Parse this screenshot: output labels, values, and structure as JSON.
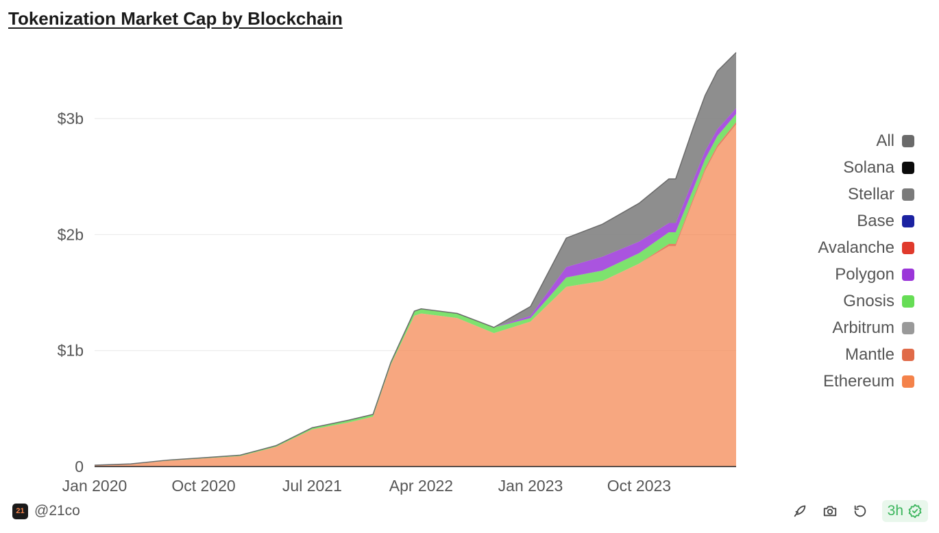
{
  "title": "Tokenization Market Cap by Blockchain",
  "footer": {
    "handle": "@21co",
    "logo_text": "21",
    "refresh_label": "3h"
  },
  "icons": {
    "brand": "21co-logo-icon",
    "tool_1": "feather-pen-icon",
    "tool_2": "camera-icon",
    "tool_3": "refresh-icon",
    "status": "check-badge-icon"
  },
  "legend": [
    {
      "label": "All",
      "color": "#6a6a6a"
    },
    {
      "label": "Solana",
      "color": "#0a0a0a"
    },
    {
      "label": "Stellar",
      "color": "#7a7a7a"
    },
    {
      "label": "Base",
      "color": "#1b22a1"
    },
    {
      "label": "Avalanche",
      "color": "#e03a2c"
    },
    {
      "label": "Polygon",
      "color": "#9b36d9"
    },
    {
      "label": "Gnosis",
      "color": "#66dd55"
    },
    {
      "label": "Arbitrum",
      "color": "#999999"
    },
    {
      "label": "Mantle",
      "color": "#e06a48"
    },
    {
      "label": "Ethereum",
      "color": "#f4824a"
    }
  ],
  "chart_data": {
    "type": "area",
    "stacked": true,
    "title": "Tokenization Market Cap by Blockchain",
    "xlabel": "",
    "ylabel": "",
    "x_ticks": [
      "Jan 2020",
      "Oct 2020",
      "Jul 2021",
      "Apr 2022",
      "Jan 2023",
      "Oct 2023"
    ],
    "y_ticks": [
      "0",
      "$1b",
      "$2b",
      "$3b"
    ],
    "ylim": [
      0,
      3.55
    ],
    "y_unit": "billions USD",
    "grid": "horizontal",
    "legend_position": "right",
    "x": [
      "2020-01-01",
      "2020-04-01",
      "2020-07-01",
      "2020-10-01",
      "2021-01-01",
      "2021-04-01",
      "2021-07-01",
      "2021-10-01",
      "2021-12-01",
      "2022-01-15",
      "2022-03-15",
      "2022-04-01",
      "2022-07-01",
      "2022-10-01",
      "2023-01-01",
      "2023-04-01",
      "2023-07-01",
      "2023-10-01",
      "2023-12-15",
      "2024-01-01",
      "2024-02-15",
      "2024-03-15",
      "2024-04-15",
      "2024-06-01"
    ],
    "series": [
      {
        "name": "Ethereum",
        "color": "#f4824a",
        "values": [
          0.01,
          0.02,
          0.05,
          0.07,
          0.09,
          0.17,
          0.32,
          0.38,
          0.43,
          0.88,
          1.3,
          1.32,
          1.28,
          1.15,
          1.25,
          1.55,
          1.6,
          1.75,
          1.9,
          1.9,
          2.3,
          2.55,
          2.75,
          2.95
        ]
      },
      {
        "name": "Mantle",
        "color": "#e06a48",
        "values": [
          0,
          0,
          0,
          0,
          0,
          0,
          0,
          0,
          0,
          0,
          0,
          0,
          0,
          0,
          0,
          0,
          0,
          0,
          0.02,
          0.02,
          0.02,
          0.02,
          0.02,
          0.02
        ]
      },
      {
        "name": "Arbitrum",
        "color": "#999999",
        "values": [
          0,
          0,
          0,
          0,
          0,
          0,
          0,
          0,
          0,
          0,
          0,
          0,
          0,
          0,
          0,
          0,
          0,
          0,
          0,
          0,
          0,
          0,
          0,
          0
        ]
      },
      {
        "name": "Gnosis",
        "color": "#66dd55",
        "values": [
          0.002,
          0.003,
          0.005,
          0.006,
          0.008,
          0.01,
          0.015,
          0.02,
          0.02,
          0.02,
          0.04,
          0.04,
          0.04,
          0.05,
          0.03,
          0.08,
          0.09,
          0.09,
          0.1,
          0.1,
          0.08,
          0.08,
          0.08,
          0.07
        ]
      },
      {
        "name": "Polygon",
        "color": "#9b36d9",
        "values": [
          0,
          0,
          0,
          0,
          0,
          0,
          0,
          0,
          0,
          0,
          0,
          0,
          0,
          0,
          0.02,
          0.09,
          0.12,
          0.1,
          0.08,
          0.08,
          0.08,
          0.07,
          0.06,
          0.05
        ]
      },
      {
        "name": "Avalanche",
        "color": "#e03a2c",
        "values": [
          0,
          0,
          0,
          0,
          0,
          0,
          0,
          0,
          0,
          0,
          0,
          0,
          0,
          0,
          0,
          0,
          0,
          0,
          0,
          0,
          0,
          0,
          0,
          0
        ]
      },
      {
        "name": "Base",
        "color": "#1b22a1",
        "values": [
          0,
          0,
          0,
          0,
          0,
          0,
          0,
          0,
          0,
          0,
          0,
          0,
          0,
          0,
          0,
          0,
          0,
          0,
          0,
          0,
          0,
          0,
          0,
          0
        ]
      },
      {
        "name": "Stellar",
        "color": "#7a7a7a",
        "values": [
          0,
          0,
          0,
          0,
          0,
          0,
          0,
          0,
          0,
          0,
          0,
          0,
          0,
          0,
          0.08,
          0.25,
          0.28,
          0.33,
          0.38,
          0.38,
          0.45,
          0.48,
          0.5,
          0.48
        ]
      },
      {
        "name": "Solana",
        "color": "#0a0a0a",
        "values": [
          0,
          0,
          0,
          0,
          0,
          0,
          0,
          0,
          0,
          0,
          0,
          0,
          0,
          0,
          0,
          0,
          0,
          0,
          0,
          0,
          0,
          0,
          0,
          0
        ]
      }
    ]
  }
}
